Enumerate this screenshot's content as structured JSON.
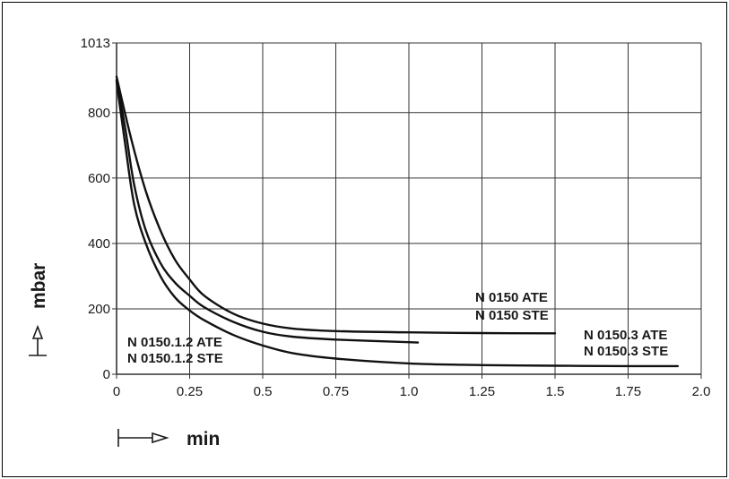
{
  "chart_data": {
    "type": "line",
    "title": "",
    "xlabel": "min",
    "ylabel": "mbar",
    "xlim": [
      0,
      2.0
    ],
    "ylim": [
      0,
      1013
    ],
    "grid": true,
    "x_ticks": [
      {
        "value": 0,
        "label": "0"
      },
      {
        "value": 0.25,
        "label": "0.25"
      },
      {
        "value": 0.5,
        "label": "0.5"
      },
      {
        "value": 0.75,
        "label": "0.75"
      },
      {
        "value": 1.0,
        "label": "1.0"
      },
      {
        "value": 1.25,
        "label": "1.25"
      },
      {
        "value": 1.5,
        "label": "1.5"
      },
      {
        "value": 1.75,
        "label": "1.75"
      },
      {
        "value": 2.0,
        "label": "2.0"
      }
    ],
    "y_ticks": [
      {
        "value": 0,
        "label": "0"
      },
      {
        "value": 200,
        "label": "200"
      },
      {
        "value": 400,
        "label": "400"
      },
      {
        "value": 600,
        "label": "600"
      },
      {
        "value": 800,
        "label": "800"
      },
      {
        "value": 1013,
        "label": "1013"
      }
    ],
    "series": [
      {
        "name": "N 0150 ATE / N 0150 STE",
        "labels": [
          "N 0150 ATE",
          "N 0150 STE"
        ],
        "points": [
          [
            0.0,
            910
          ],
          [
            0.05,
            720
          ],
          [
            0.1,
            560
          ],
          [
            0.15,
            440
          ],
          [
            0.2,
            350
          ],
          [
            0.25,
            290
          ],
          [
            0.3,
            240
          ],
          [
            0.4,
            185
          ],
          [
            0.5,
            155
          ],
          [
            0.6,
            140
          ],
          [
            0.75,
            132
          ],
          [
            1.0,
            128
          ],
          [
            1.25,
            126
          ],
          [
            1.5,
            125
          ]
        ]
      },
      {
        "name": "N 0150.1.2 ATE / N 0150.1.2 STE",
        "labels": [
          "N 0150.1.2 ATE",
          "N 0150.1.2 STE"
        ],
        "points": [
          [
            0.0,
            900
          ],
          [
            0.03,
            750
          ],
          [
            0.06,
            580
          ],
          [
            0.1,
            440
          ],
          [
            0.15,
            340
          ],
          [
            0.2,
            280
          ],
          [
            0.25,
            240
          ],
          [
            0.3,
            205
          ],
          [
            0.4,
            160
          ],
          [
            0.5,
            130
          ],
          [
            0.6,
            115
          ],
          [
            0.75,
            106
          ],
          [
            1.0,
            98
          ],
          [
            1.03,
            97
          ]
        ]
      },
      {
        "name": "N 0150.3 ATE / N 0150.3 STE",
        "labels": [
          "N 0150.3 ATE",
          "N 0150.3 STE"
        ],
        "points": [
          [
            0.0,
            895
          ],
          [
            0.03,
            700
          ],
          [
            0.06,
            520
          ],
          [
            0.1,
            400
          ],
          [
            0.15,
            300
          ],
          [
            0.2,
            235
          ],
          [
            0.25,
            195
          ],
          [
            0.3,
            165
          ],
          [
            0.4,
            120
          ],
          [
            0.5,
            88
          ],
          [
            0.6,
            65
          ],
          [
            0.75,
            48
          ],
          [
            1.0,
            33
          ],
          [
            1.25,
            28
          ],
          [
            1.5,
            26
          ],
          [
            1.75,
            25
          ],
          [
            1.92,
            25
          ]
        ]
      }
    ]
  }
}
